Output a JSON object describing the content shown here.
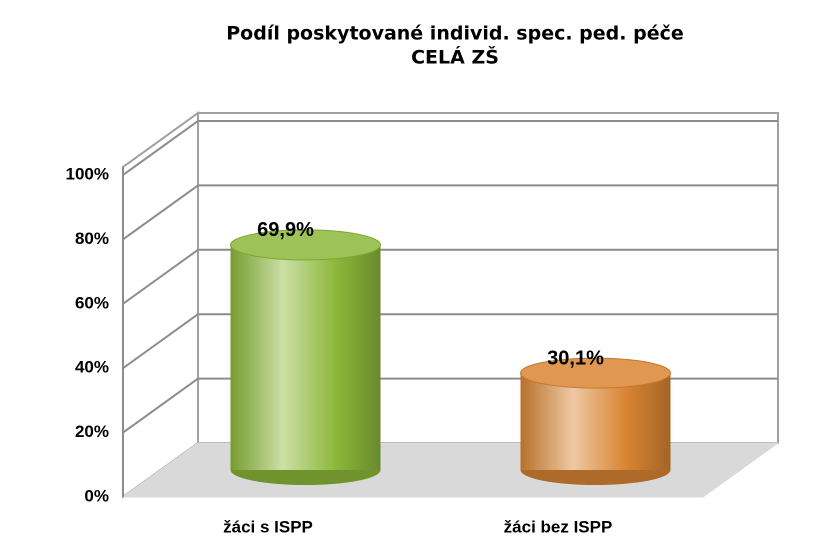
{
  "chart_data": {
    "type": "bar3d",
    "title": "Podíl poskytované individ. spec. ped. péče",
    "subtitle": "CELÁ ZŠ",
    "categories": [
      "žáci s ISPP",
      "žáci bez ISPP"
    ],
    "values": [
      69.9,
      30.1
    ],
    "value_labels": [
      "69,9%",
      "30,1%"
    ],
    "colors": [
      "#8cb83a",
      "#d98532"
    ],
    "ylim": [
      0,
      100
    ],
    "yticks": [
      {
        "value": 0,
        "label": "0%"
      },
      {
        "value": 20,
        "label": "20%"
      },
      {
        "value": 40,
        "label": "40%"
      },
      {
        "value": 60,
        "label": "60%"
      },
      {
        "value": 80,
        "label": "80%"
      },
      {
        "value": 100,
        "label": "100%"
      }
    ],
    "grid": true
  }
}
